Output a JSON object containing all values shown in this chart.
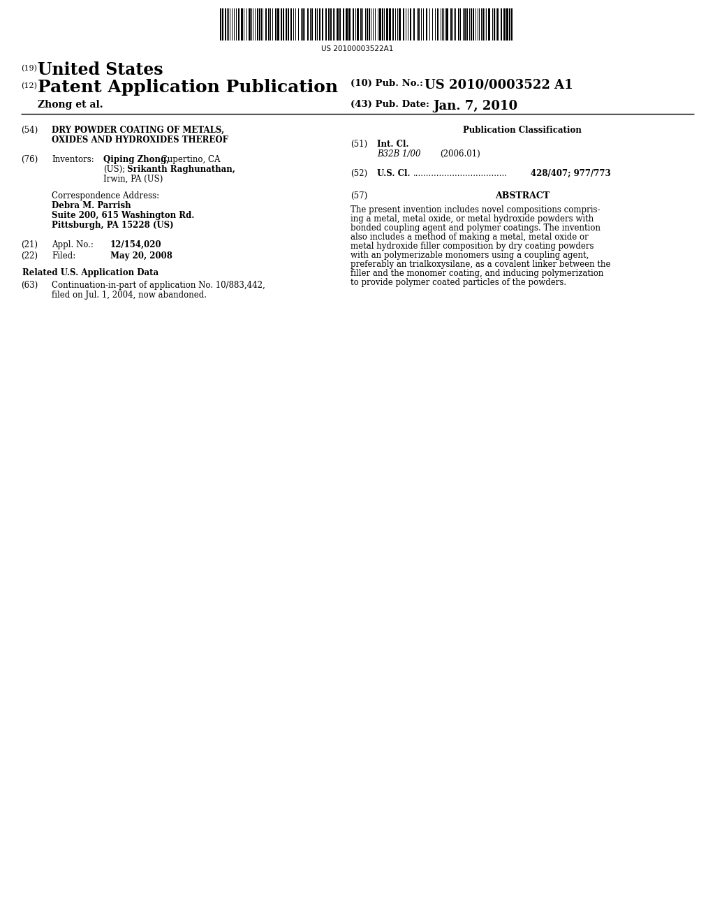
{
  "background_color": "#ffffff",
  "barcode_text": "US 20100003522A1",
  "header_19_super": "(19)",
  "header_19_text": "United States",
  "header_12_super": "(12)",
  "header_12_text": "Patent Application Publication",
  "header_10_label": "(10) Pub. No.:",
  "header_10_value": "US 2010/0003522 A1",
  "header_43_label": "(43) Pub. Date:",
  "header_43_value": "Jan. 7, 2010",
  "author_line": "Zhong et al.",
  "field_54_label": "(54)",
  "field_54_title_line1": "DRY POWDER COATING OF METALS,",
  "field_54_title_line2": "OXIDES AND HYDROXIDES THEREOF",
  "field_76_label": "(76)",
  "field_76_key": "Inventors:",
  "field_76_inv1_bold": "Qiping Zhong,",
  "field_76_inv1_rest": " Cupertino, CA",
  "field_76_inv2": "(US);",
  "field_76_inv2_bold": " Srikanth Raghunathan,",
  "field_76_inv3": "Irwin, PA (US)",
  "corr_label": "Correspondence Address:",
  "corr_line1": "Debra M. Parrish",
  "corr_line2": "Suite 200, 615 Washington Rd.",
  "corr_line3": "Pittsburgh, PA 15228 (US)",
  "field_21_label": "(21)",
  "field_21_key": "Appl. No.:",
  "field_21_value": "12/154,020",
  "field_22_label": "(22)",
  "field_22_key": "Filed:",
  "field_22_value": "May 20, 2008",
  "related_header": "Related U.S. Application Data",
  "field_63_label": "(63)",
  "field_63_line1": "Continuation-in-part of application No. 10/883,442,",
  "field_63_line2": "filed on Jul. 1, 2004, now abandoned.",
  "pub_class_header": "Publication Classification",
  "field_51_label": "(51)",
  "field_51_key": "Int. Cl.",
  "field_51_class": "B32B 1/00",
  "field_51_year": "(2006.01)",
  "field_52_label": "(52)",
  "field_52_key": "U.S. Cl.",
  "field_52_value": "428/407; 977/773",
  "field_57_label": "(57)",
  "field_57_header": "ABSTRACT",
  "abstract_line01": "The present invention includes novel compositions compris-",
  "abstract_line02": "ing a metal, metal oxide, or metal hydroxide powders with",
  "abstract_line03": "bonded coupling agent and polymer coatings. The invention",
  "abstract_line04": "also includes a method of making a metal, metal oxide or",
  "abstract_line05": "metal hydroxide filler composition by dry coating powders",
  "abstract_line06": "with an polymerizable monomers using a coupling agent,",
  "abstract_line07": "preferably an trialkoxysilane, as a covalent linker between the",
  "abstract_line08": "filler and the monomer coating, and inducing polymerization",
  "abstract_line09": "to provide polymer coated particles of the powders."
}
